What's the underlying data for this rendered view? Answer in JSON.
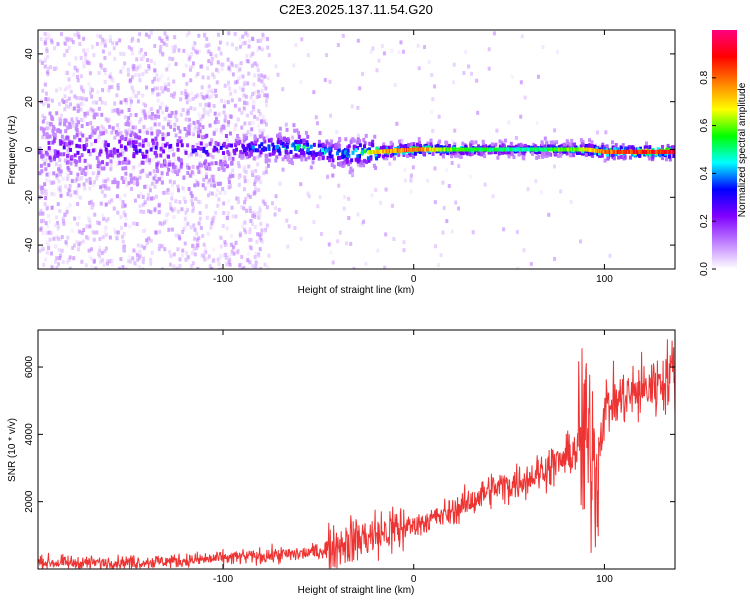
{
  "title": "C2E3.2025.137.11.54.G20",
  "colors": {
    "snr_line": "#ee3333",
    "axis": "#000000",
    "background": "#ffffff"
  },
  "chart_data": [
    {
      "type": "heatmap",
      "xlabel": "Height of straight line (km)",
      "ylabel": "Frequency (Hz)",
      "xlim": [
        -197,
        137
      ],
      "ylim": [
        -50,
        50
      ],
      "xticks": [
        -100,
        0,
        100
      ],
      "xtick_labels": [
        "-100",
        "0",
        "100"
      ],
      "yticks": [
        -40,
        -20,
        0,
        20,
        40
      ],
      "ytick_labels": [
        "-40",
        "-20",
        "0",
        "20",
        "40"
      ],
      "grid": false,
      "colorbar": {
        "label": "Normalized spectral amplitude",
        "range": [
          0,
          1
        ],
        "ticks": [
          0.0,
          0.2,
          0.4,
          0.6,
          0.8
        ],
        "tick_labels": [
          "0.0",
          "0.2",
          "0.4",
          "0.6",
          "0.8"
        ],
        "colormap": [
          "#ffffff",
          "#c080ff",
          "#8000ff",
          "#0000ff",
          "#00ffff",
          "#00ff00",
          "#ffff00",
          "#ff8000",
          "#ff0000",
          "#ff0080"
        ]
      },
      "ridge": {
        "description_values": "center frequency of signal ridge vs height",
        "x": [
          -197,
          -150,
          -100,
          -80,
          -60,
          -40,
          -20,
          0,
          20,
          60,
          90,
          100,
          137
        ],
        "center_hz": [
          0,
          0,
          0,
          1,
          1,
          -2,
          -1,
          0,
          0,
          0,
          0,
          -1,
          -1
        ],
        "peak_amplitude": [
          0.25,
          0.3,
          0.3,
          0.45,
          0.55,
          0.5,
          0.75,
          0.85,
          0.6,
          0.5,
          0.7,
          0.85,
          0.95
        ]
      }
    },
    {
      "type": "line",
      "xlabel": "Height of straight line (km)",
      "ylabel": "SNR (10 * v/v)",
      "xlim": [
        -197,
        137
      ],
      "ylim": [
        0,
        7100
      ],
      "xticks": [
        -100,
        0,
        100
      ],
      "xtick_labels": [
        "-100",
        "0",
        "100"
      ],
      "yticks": [
        2000,
        4000,
        6000
      ],
      "ytick_labels": [
        "2000",
        "4000",
        "6000"
      ],
      "grid": false,
      "series": [
        {
          "x": [
            -197,
            -180,
            -160,
            -140,
            -120,
            -100,
            -90,
            -80,
            -70,
            -60,
            -50,
            -40,
            -30,
            -20,
            -10,
            0,
            10,
            20,
            30,
            40,
            50,
            60,
            70,
            80,
            85,
            88,
            90,
            92,
            94,
            96,
            100,
            110,
            120,
            130,
            137
          ],
          "y": [
            200,
            180,
            190,
            210,
            250,
            320,
            360,
            380,
            420,
            450,
            520,
            700,
            900,
            1000,
            1150,
            1300,
            1500,
            1700,
            2000,
            2350,
            2500,
            2700,
            3000,
            3300,
            3550,
            3600,
            4000,
            3300,
            3700,
            3100,
            4800,
            5100,
            5300,
            5600,
            5950
          ]
        }
      ]
    }
  ]
}
